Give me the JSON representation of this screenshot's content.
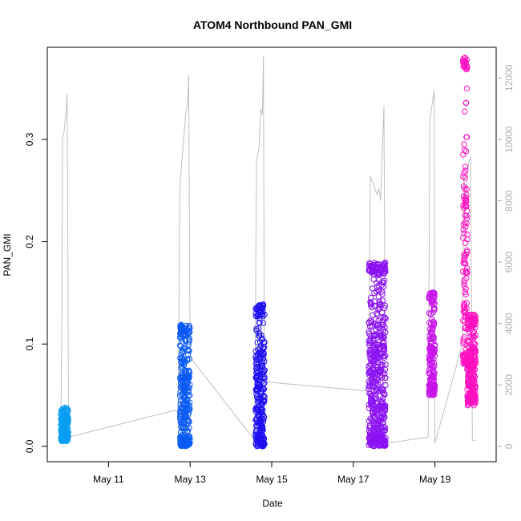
{
  "chart_data": {
    "type": "scatter",
    "title": "ATOM4 Northbound PAN_GMI",
    "xlabel": "Date",
    "ylabel": "PAN_GMI",
    "x_start": "2016-05-09T20:00",
    "x_end": "2016-05-20T00:00",
    "xlim": [
      "2016-05-09T12:00",
      "2016-05-20T12:00"
    ],
    "ylim": [
      -0.015,
      0.39
    ],
    "y2lim": [
      -500,
      13000
    ],
    "x_ticks": [
      {
        "date": "2016-05-11",
        "label": "May 11"
      },
      {
        "date": "2016-05-13",
        "label": "May 13"
      },
      {
        "date": "2016-05-15",
        "label": "May 15"
      },
      {
        "date": "2016-05-17",
        "label": "May 17"
      },
      {
        "date": "2016-05-19",
        "label": "May 19"
      }
    ],
    "y_ticks": [
      "0.0",
      "0.1",
      "0.2",
      "0.3"
    ],
    "y2_ticks": [
      "0",
      "2000",
      "4000",
      "6000",
      "8000",
      "10000",
      "12000"
    ],
    "grid": false,
    "legend": "none",
    "series": [
      {
        "kind": "scatter",
        "color": "#0A9EF0",
        "clusters": [
          {
            "x_start": "2016-05-09T20:00",
            "x_end": "2016-05-10T00:20",
            "y_min": 0.005,
            "y_max": 0.038
          }
        ]
      },
      {
        "kind": "scatter",
        "color": "#0A5AF5",
        "clusters": [
          {
            "x_start": "2016-05-12T18:00",
            "x_end": "2016-05-12T23:50",
            "y_min": 0.0,
            "y_max": 0.119
          }
        ]
      },
      {
        "kind": "scatter",
        "color": "#1E10F0",
        "clusters": [
          {
            "x_start": "2016-05-14T14:30",
            "x_end": "2016-05-14T19:50",
            "y_min": 0.0,
            "y_max": 0.139
          }
        ]
      },
      {
        "kind": "scatter",
        "color": "#8A12F2",
        "clusters": [
          {
            "x_start": "2016-05-17T09:00",
            "x_end": "2016-05-17T19:00",
            "y_min": 0.0,
            "y_max": 0.18
          }
        ]
      },
      {
        "kind": "scatter",
        "color": "#C814EA",
        "clusters": [
          {
            "x_start": "2016-05-18T20:30",
            "x_end": "2016-05-19T00:00",
            "y_min": 0.05,
            "y_max": 0.151
          }
        ]
      },
      {
        "kind": "scatter",
        "color": "#FF10C0",
        "clusters": [
          {
            "x_start": "2016-05-19T16:30",
            "x_end": "2016-05-19T19:00",
            "y_min": 0.08,
            "y_max": 0.38
          },
          {
            "x_start": "2016-05-19T19:00",
            "x_end": "2016-05-20T00:00",
            "y_min": 0.04,
            "y_max": 0.13
          }
        ]
      },
      {
        "kind": "line",
        "axis": "right",
        "color": "#c0c0c0",
        "points": [
          [
            "2016-05-09T20:00",
            800
          ],
          [
            "2016-05-09T20:30",
            3300
          ],
          [
            "2016-05-09T21:00",
            10000
          ],
          [
            "2016-05-09T22:00",
            10300
          ],
          [
            "2016-05-09T23:00",
            10900
          ],
          [
            "2016-05-09T23:40",
            11500
          ],
          [
            "2016-05-10T00:10",
            5800
          ],
          [
            "2016-05-10T00:30",
            300
          ],
          [
            "2016-05-12T17:00",
            1200
          ],
          [
            "2016-05-12T18:00",
            8500
          ],
          [
            "2016-05-12T19:30",
            9500
          ],
          [
            "2016-05-12T20:30",
            10200
          ],
          [
            "2016-05-12T21:30",
            10900
          ],
          [
            "2016-05-12T22:30",
            11100
          ],
          [
            "2016-05-12T23:10",
            12100
          ],
          [
            "2016-05-13T00:00",
            2900
          ],
          [
            "2016-05-14T14:00",
            200
          ],
          [
            "2016-05-14T15:00",
            9300
          ],
          [
            "2016-05-14T16:30",
            9700
          ],
          [
            "2016-05-14T17:30",
            11000
          ],
          [
            "2016-05-14T18:30",
            10800
          ],
          [
            "2016-05-14T19:10",
            12700
          ],
          [
            "2016-05-14T19:40",
            2100
          ],
          [
            "2016-05-17T09:00",
            1800
          ],
          [
            "2016-05-17T10:00",
            8800
          ],
          [
            "2016-05-17T12:00",
            8500
          ],
          [
            "2016-05-17T14:00",
            8200
          ],
          [
            "2016-05-17T15:00",
            8400
          ],
          [
            "2016-05-17T16:00",
            8000
          ],
          [
            "2016-05-17T18:00",
            11100
          ],
          [
            "2016-05-17T19:00",
            100
          ],
          [
            "2016-05-18T20:00",
            300
          ],
          [
            "2016-05-18T21:00",
            10600
          ],
          [
            "2016-05-18T22:00",
            11000
          ],
          [
            "2016-05-18T23:30",
            11600
          ],
          [
            "2016-05-19T00:00",
            100
          ],
          [
            "2016-05-19T16:00",
            3300
          ],
          [
            "2016-05-19T17:00",
            8800
          ],
          [
            "2016-05-19T18:00",
            7900
          ],
          [
            "2016-05-19T19:00",
            8800
          ],
          [
            "2016-05-19T20:00",
            9300
          ],
          [
            "2016-05-19T21:00",
            9400
          ],
          [
            "2016-05-19T22:00",
            200
          ],
          [
            "2016-05-20T00:00",
            200
          ]
        ]
      }
    ]
  }
}
